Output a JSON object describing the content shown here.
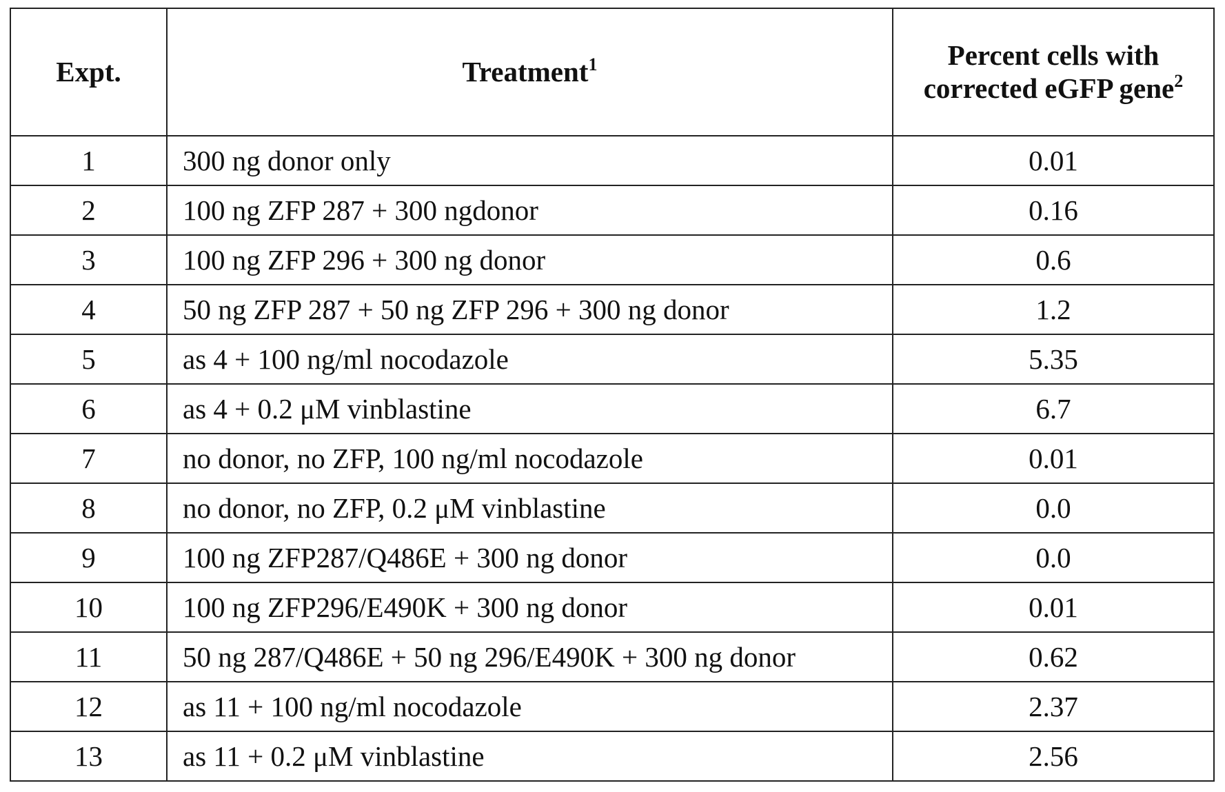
{
  "table": {
    "header": {
      "expt": "Expt.",
      "treatment": "Treatment",
      "treatment_note": "1",
      "percent": "Percent cells with corrected eGFP gene",
      "percent_note": "2"
    },
    "rows": [
      [
        "1",
        "300 ng donor only",
        "0.01"
      ],
      [
        "2",
        "100 ng ZFP 287 + 300 ngdonor",
        "0.16"
      ],
      [
        "3",
        "100 ng ZFP 296 + 300 ng donor",
        "0.6"
      ],
      [
        "4",
        "50 ng ZFP 287 + 50 ng ZFP 296 + 300 ng donor",
        "1.2"
      ],
      [
        "5",
        "as 4 + 100 ng/ml nocodazole",
        "5.35"
      ],
      [
        "6",
        "as 4 + 0.2 μM vinblastine",
        "6.7"
      ],
      [
        "7",
        "no donor, no ZFP,  100 ng/ml nocodazole",
        "0.01"
      ],
      [
        "8",
        "no donor, no ZFP, 0.2 μM vinblastine",
        "0.0"
      ],
      [
        "9",
        "100 ng ZFP287/Q486E + 300 ng donor",
        "0.0"
      ],
      [
        "10",
        "100 ng ZFP296/E490K + 300 ng donor",
        "0.01"
      ],
      [
        "11",
        "50 ng 287/Q486E + 50 ng 296/E490K + 300 ng donor",
        "0.62"
      ],
      [
        "12",
        "as 11 + 100 ng/ml nocodazole",
        "2.37"
      ],
      [
        "13",
        "as 11 + 0.2 μM vinblastine",
        "2.56"
      ]
    ]
  }
}
